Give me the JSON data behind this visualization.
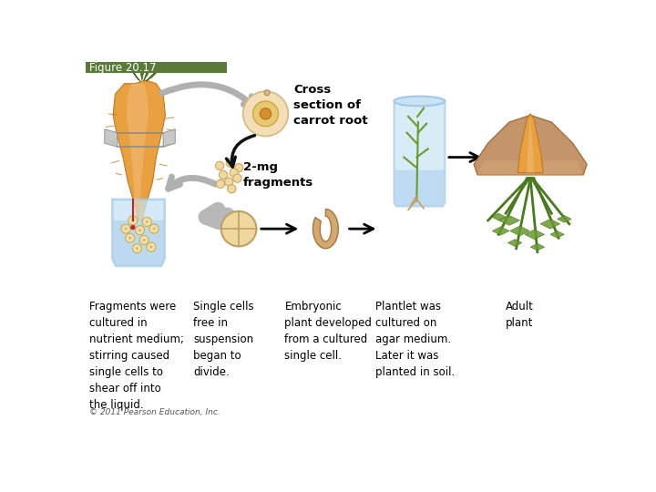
{
  "title_box_text": "Figure 20.17",
  "title_box_color": "#5a7a3a",
  "title_text_color": "#ffffff",
  "title_fontsize": 9,
  "background_color": "#ffffff",
  "label_cross_section": "Cross\nsection of\ncarrot root",
  "label_2mg": "2-mg\nfragments",
  "label_col1": "Fragments were\ncultured in\nnutrient medium;\nstirring caused\nsingle cells to\nshear off into\nthe liquid.",
  "label_col2": "Single cells\nfree in\nsuspension\nbegan to\ndivide.",
  "label_col3": "Embryonic\nplant developed\nfrom a cultured\nsingle cell.",
  "label_col4": "Plantlet was\ncultured on\nagar medium.\nLater it was\nplanted in soil.",
  "label_col5": "Adult\nplant",
  "copyright": "© 2011 Pearson Education, Inc.",
  "text_fontsize": 8.5,
  "text_color": "#000000",
  "carrot_orange": "#E8A040",
  "carrot_edge": "#C07820",
  "carrot_light": "#F0C080",
  "green_dark": "#4a7a20",
  "green_mid": "#6a9a30",
  "blue_light": "#c8e4f4",
  "blue_mid": "#a0c8e8",
  "tan_light": "#f0d8b0",
  "tan_mid": "#d4b080",
  "tan_dark": "#b08040"
}
